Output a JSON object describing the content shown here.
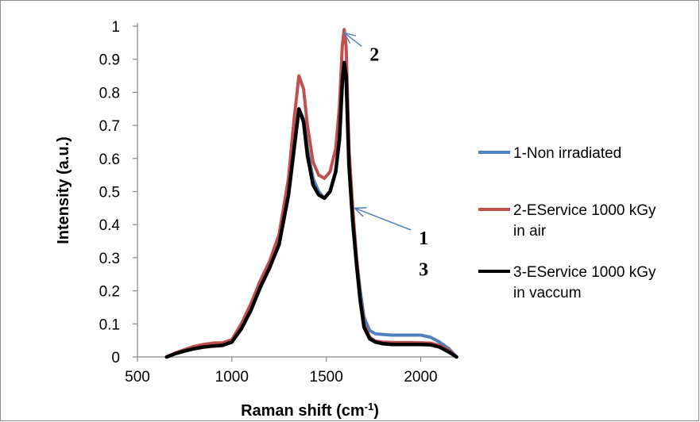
{
  "chart_data": {
    "type": "line",
    "title": "",
    "xlabel": "Raman shift (cm",
    "xlabel_sup": "-1",
    "xlabel_end": ")",
    "ylabel": "Intensity (a.u.)",
    "xlim": [
      500,
      2200
    ],
    "ylim": [
      0,
      1
    ],
    "x_ticks": [
      "500",
      "1000",
      "1500",
      "2000"
    ],
    "y_ticks": [
      "0",
      "0.1",
      "0.2",
      "0.3",
      "0.4",
      "0.5",
      "0.6",
      "0.7",
      "0.8",
      "0.9",
      "1"
    ],
    "grid": false,
    "legend_position": "right",
    "series": [
      {
        "name": "1-Non irradiated",
        "color": "#4F81BD",
        "x": [
          655,
          700,
          750,
          800,
          850,
          900,
          950,
          1000,
          1050,
          1100,
          1150,
          1200,
          1250,
          1300,
          1330,
          1355,
          1380,
          1400,
          1430,
          1460,
          1490,
          1520,
          1550,
          1570,
          1585,
          1595,
          1605,
          1620,
          1640,
          1660,
          1680,
          1700,
          1730,
          1760,
          1800,
          1850,
          1900,
          1950,
          2000,
          2050,
          2100,
          2150,
          2190
        ],
        "values": [
          0,
          0.01,
          0.02,
          0.03,
          0.035,
          0.04,
          0.04,
          0.05,
          0.09,
          0.15,
          0.22,
          0.28,
          0.35,
          0.5,
          0.64,
          0.75,
          0.72,
          0.63,
          0.54,
          0.5,
          0.48,
          0.5,
          0.56,
          0.66,
          0.82,
          0.89,
          0.85,
          0.6,
          0.43,
          0.3,
          0.2,
          0.12,
          0.08,
          0.07,
          0.068,
          0.066,
          0.066,
          0.066,
          0.066,
          0.06,
          0.045,
          0.025,
          0
        ]
      },
      {
        "name": "2-EService 1000 kGy in air",
        "color": "#C0504D",
        "x": [
          655,
          700,
          750,
          800,
          850,
          900,
          950,
          1000,
          1050,
          1100,
          1150,
          1200,
          1250,
          1300,
          1330,
          1355,
          1380,
          1400,
          1430,
          1460,
          1490,
          1520,
          1550,
          1570,
          1585,
          1595,
          1605,
          1620,
          1640,
          1660,
          1680,
          1700,
          1730,
          1760,
          1800,
          1850,
          1900,
          1950,
          2000,
          2050,
          2100,
          2150,
          2190
        ],
        "values": [
          0,
          0.012,
          0.022,
          0.032,
          0.038,
          0.042,
          0.043,
          0.052,
          0.1,
          0.16,
          0.23,
          0.29,
          0.37,
          0.54,
          0.72,
          0.85,
          0.81,
          0.7,
          0.59,
          0.55,
          0.54,
          0.56,
          0.63,
          0.76,
          0.94,
          0.99,
          0.94,
          0.63,
          0.45,
          0.3,
          0.18,
          0.1,
          0.06,
          0.048,
          0.045,
          0.044,
          0.044,
          0.044,
          0.043,
          0.042,
          0.035,
          0.02,
          0
        ]
      },
      {
        "name": "3-EService 1000 kGy in vaccum",
        "color": "#000000",
        "x": [
          655,
          700,
          750,
          800,
          850,
          900,
          950,
          1000,
          1050,
          1100,
          1150,
          1200,
          1250,
          1300,
          1330,
          1355,
          1380,
          1400,
          1430,
          1460,
          1490,
          1520,
          1550,
          1570,
          1585,
          1595,
          1605,
          1620,
          1640,
          1660,
          1680,
          1700,
          1730,
          1760,
          1800,
          1850,
          1900,
          1950,
          2000,
          2050,
          2100,
          2150,
          2190
        ],
        "values": [
          0,
          0.01,
          0.018,
          0.025,
          0.03,
          0.033,
          0.035,
          0.045,
          0.085,
          0.14,
          0.21,
          0.27,
          0.34,
          0.49,
          0.63,
          0.75,
          0.71,
          0.61,
          0.52,
          0.49,
          0.48,
          0.5,
          0.56,
          0.66,
          0.83,
          0.89,
          0.85,
          0.58,
          0.41,
          0.28,
          0.17,
          0.09,
          0.055,
          0.045,
          0.04,
          0.038,
          0.038,
          0.038,
          0.038,
          0.037,
          0.03,
          0.015,
          0
        ]
      }
    ],
    "annotations": [
      {
        "label": "2",
        "x": 1730,
        "y": 0.915,
        "arrow_to_x": 1595,
        "arrow_to_y": 0.98
      },
      {
        "label": "1",
        "x": 1990,
        "y": 0.36,
        "arrow_to_x": 1650,
        "arrow_to_y": 0.45
      },
      {
        "label": "3",
        "x": 1990,
        "y": 0.265,
        "arrow_to_x": null,
        "arrow_to_y": null
      }
    ],
    "arrow_color": "#4F81BD",
    "legend_wrapped": [
      [
        "1-Non irradiated"
      ],
      [
        "2-EService 1000 kGy",
        "in air"
      ],
      [
        "3-EService 1000 kGy",
        "in vaccum"
      ]
    ]
  }
}
